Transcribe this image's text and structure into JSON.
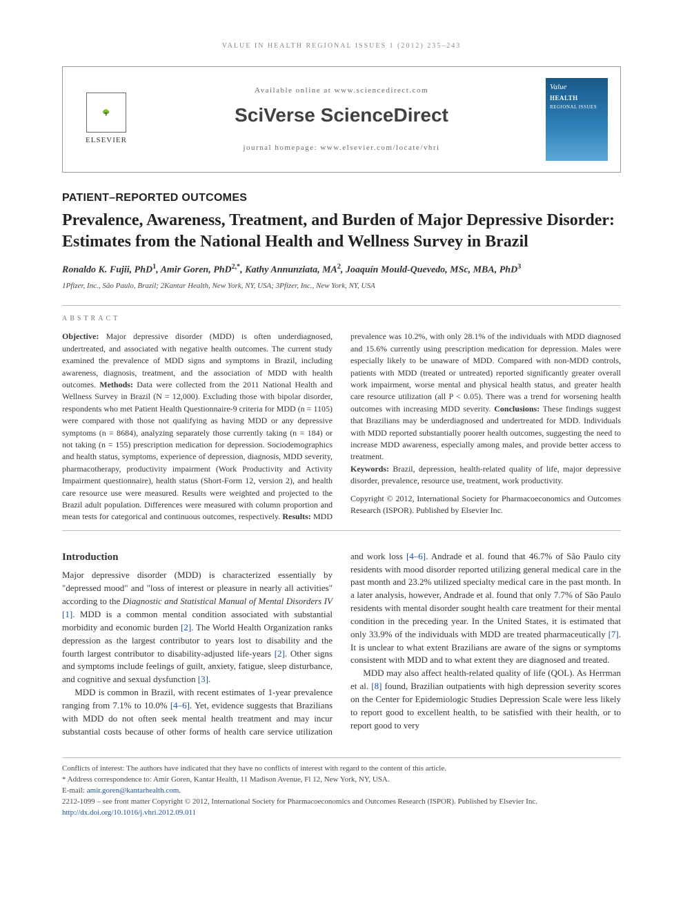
{
  "running_head": "VALUE IN HEALTH REGIONAL ISSUES 1 (2012) 235–243",
  "header": {
    "elsevier": "ELSEVIER",
    "available_line": "Available online at www.sciencedirect.com",
    "sciverse": "SciVerse ScienceDirect",
    "homepage_line": "journal homepage: www.elsevier.com/locate/vhri",
    "cover_line1": "Value",
    "cover_line2": "HEALTH",
    "cover_line3": "REGIONAL ISSUES"
  },
  "section_label": "PATIENT–REPORTED OUTCOMES",
  "title": "Prevalence, Awareness, Treatment, and Burden of Major Depressive Disorder: Estimates from the National Health and Wellness Survey in Brazil",
  "authors_html": "Ronaldo K. Fujii, PhD<sup>1</sup>, Amir Goren, PhD<sup>2,*</sup>, Kathy Annunziata, MA<sup>2</sup>, Joaquín Mould-Quevedo, MSc, MBA, PhD<sup>3</sup>",
  "affiliations": "1Pfizer, Inc., São Paulo, Brazil; 2Kantar Health, New York, NY, USA; 3Pfizer, Inc., New York, NY, USA",
  "abstract_label": "ABSTRACT",
  "abstract": {
    "objective_label": "Objective:",
    "objective": " Major depressive disorder (MDD) is often underdiagnosed, undertreated, and associated with negative health outcomes. The current study examined the prevalence of MDD signs and symptoms in Brazil, including awareness, diagnosis, treatment, and the association of MDD with health outcomes. ",
    "methods_label": "Methods:",
    "methods": " Data were collected from the 2011 National Health and Wellness Survey in Brazil (N = 12,000). Excluding those with bipolar disorder, respondents who met Patient Health Questionnaire-9 criteria for MDD (n = 1105) were compared with those not qualifying as having MDD or any depressive symptoms (n = 8684), analyzing separately those currently taking (n = 184) or not taking (n = 155) prescription medication for depression. Sociodemographics and health status, symptoms, experience of depression, diagnosis, MDD severity, pharmacotherapy, productivity impairment (Work Productivity and Activity Impairment questionnaire), health status (Short-Form 12, version 2), and health care resource use were measured. Results were weighted and projected to the Brazil adult population. Differences were measured with column proportion and mean tests for categorical and continuous outcomes, respectively. ",
    "results_label": "Results:",
    "results": " MDD prevalence was 10.2%, with only 28.1% of the individuals with MDD diagnosed and 15.6% currently using prescription medication for depression. Males were especially likely to be unaware of MDD. Compared with non-MDD controls, patients with MDD (treated or untreated) reported significantly greater overall work impairment, worse mental and physical health status, and greater health care resource utilization (all P < 0.05). There was a trend for worsening health outcomes with increasing MDD severity. ",
    "conclusions_label": "Conclusions:",
    "conclusions": " These findings suggest that Brazilians may be underdiagnosed and undertreated for MDD. Individuals with MDD reported substantially poorer health outcomes, suggesting the need to increase MDD awareness, especially among males, and provide better access to treatment.",
    "keywords_label": "Keywords:",
    "keywords": " Brazil, depression, health-related quality of life, major depressive disorder, prevalence, resource use, treatment, work productivity.",
    "copyright": "Copyright © 2012, International Society for Pharmacoeconomics and Outcomes Research (ISPOR). Published by Elsevier Inc."
  },
  "intro_heading": "Introduction",
  "intro_p1": "Major depressive disorder (MDD) is characterized essentially by \"depressed mood\" and \"loss of interest or pleasure in nearly all activities\" according to the Diagnostic and Statistical Manual of Mental Disorders IV [1]. MDD is a common mental condition associated with substantial morbidity and economic burden [2]. The World Health Organization ranks depression as the largest contributor to years lost to disability and the fourth largest contributor to disability-adjusted life-years [2]. Other signs and symptoms include feelings of guilt, anxiety, fatigue, sleep disturbance, and cognitive and sexual dysfunction [3].",
  "intro_p2": "MDD is common in Brazil, with recent estimates of 1-year prevalence ranging from 7.1% to 10.0% [4–6]. Yet, evidence suggests that Brazilians with MDD do not often seek mental health treatment and may incur substantial costs because of other forms of health care service utilization and work loss [4–6]. Andrade et al. found that 46.7% of São Paulo city residents with mood disorder reported utilizing general medical care in the past month and 23.2% utilized specialty medical care in the past month. In a later analysis, however, Andrade et al. found that only 7.7% of São Paulo residents with mental disorder sought health care treatment for their mental condition in the preceding year. In the United States, it is estimated that only 33.9% of the individuals with MDD are treated pharmaceutically [7]. It is unclear to what extent Brazilians are aware of the signs or symptoms consistent with MDD and to what extent they are diagnosed and treated.",
  "intro_p3": "MDD may also affect health-related quality of life (QOL). As Herrman et al. [8] found, Brazilian outpatients with high depression severity scores on the Center for Epidemiologic Studies Depression Scale were less likely to report good to excellent health, to be satisfied with their health, or to report good to very",
  "footnotes": {
    "coi": "Conflicts of interest: The authors have indicated that they have no conflicts of interest with regard to the content of this article.",
    "corr_label": "* Address correspondence to:",
    "corr": " Amir Goren, Kantar Health, 11 Madison Avenue, Fl 12, New York, NY, USA.",
    "email_label": "E-mail: ",
    "email": "amir.goren@kantarhealth.com",
    "issn_line": "2212-1099 – see front matter Copyright © 2012, International Society for Pharmacoeconomics and Outcomes Research (ISPOR). Published by Elsevier Inc.",
    "doi": "http://dx.doi.org/10.1016/j.vhri.2012.09.011"
  },
  "colors": {
    "link": "#1a4fa3",
    "rule": "#bbbbbb",
    "muted": "#888888"
  }
}
